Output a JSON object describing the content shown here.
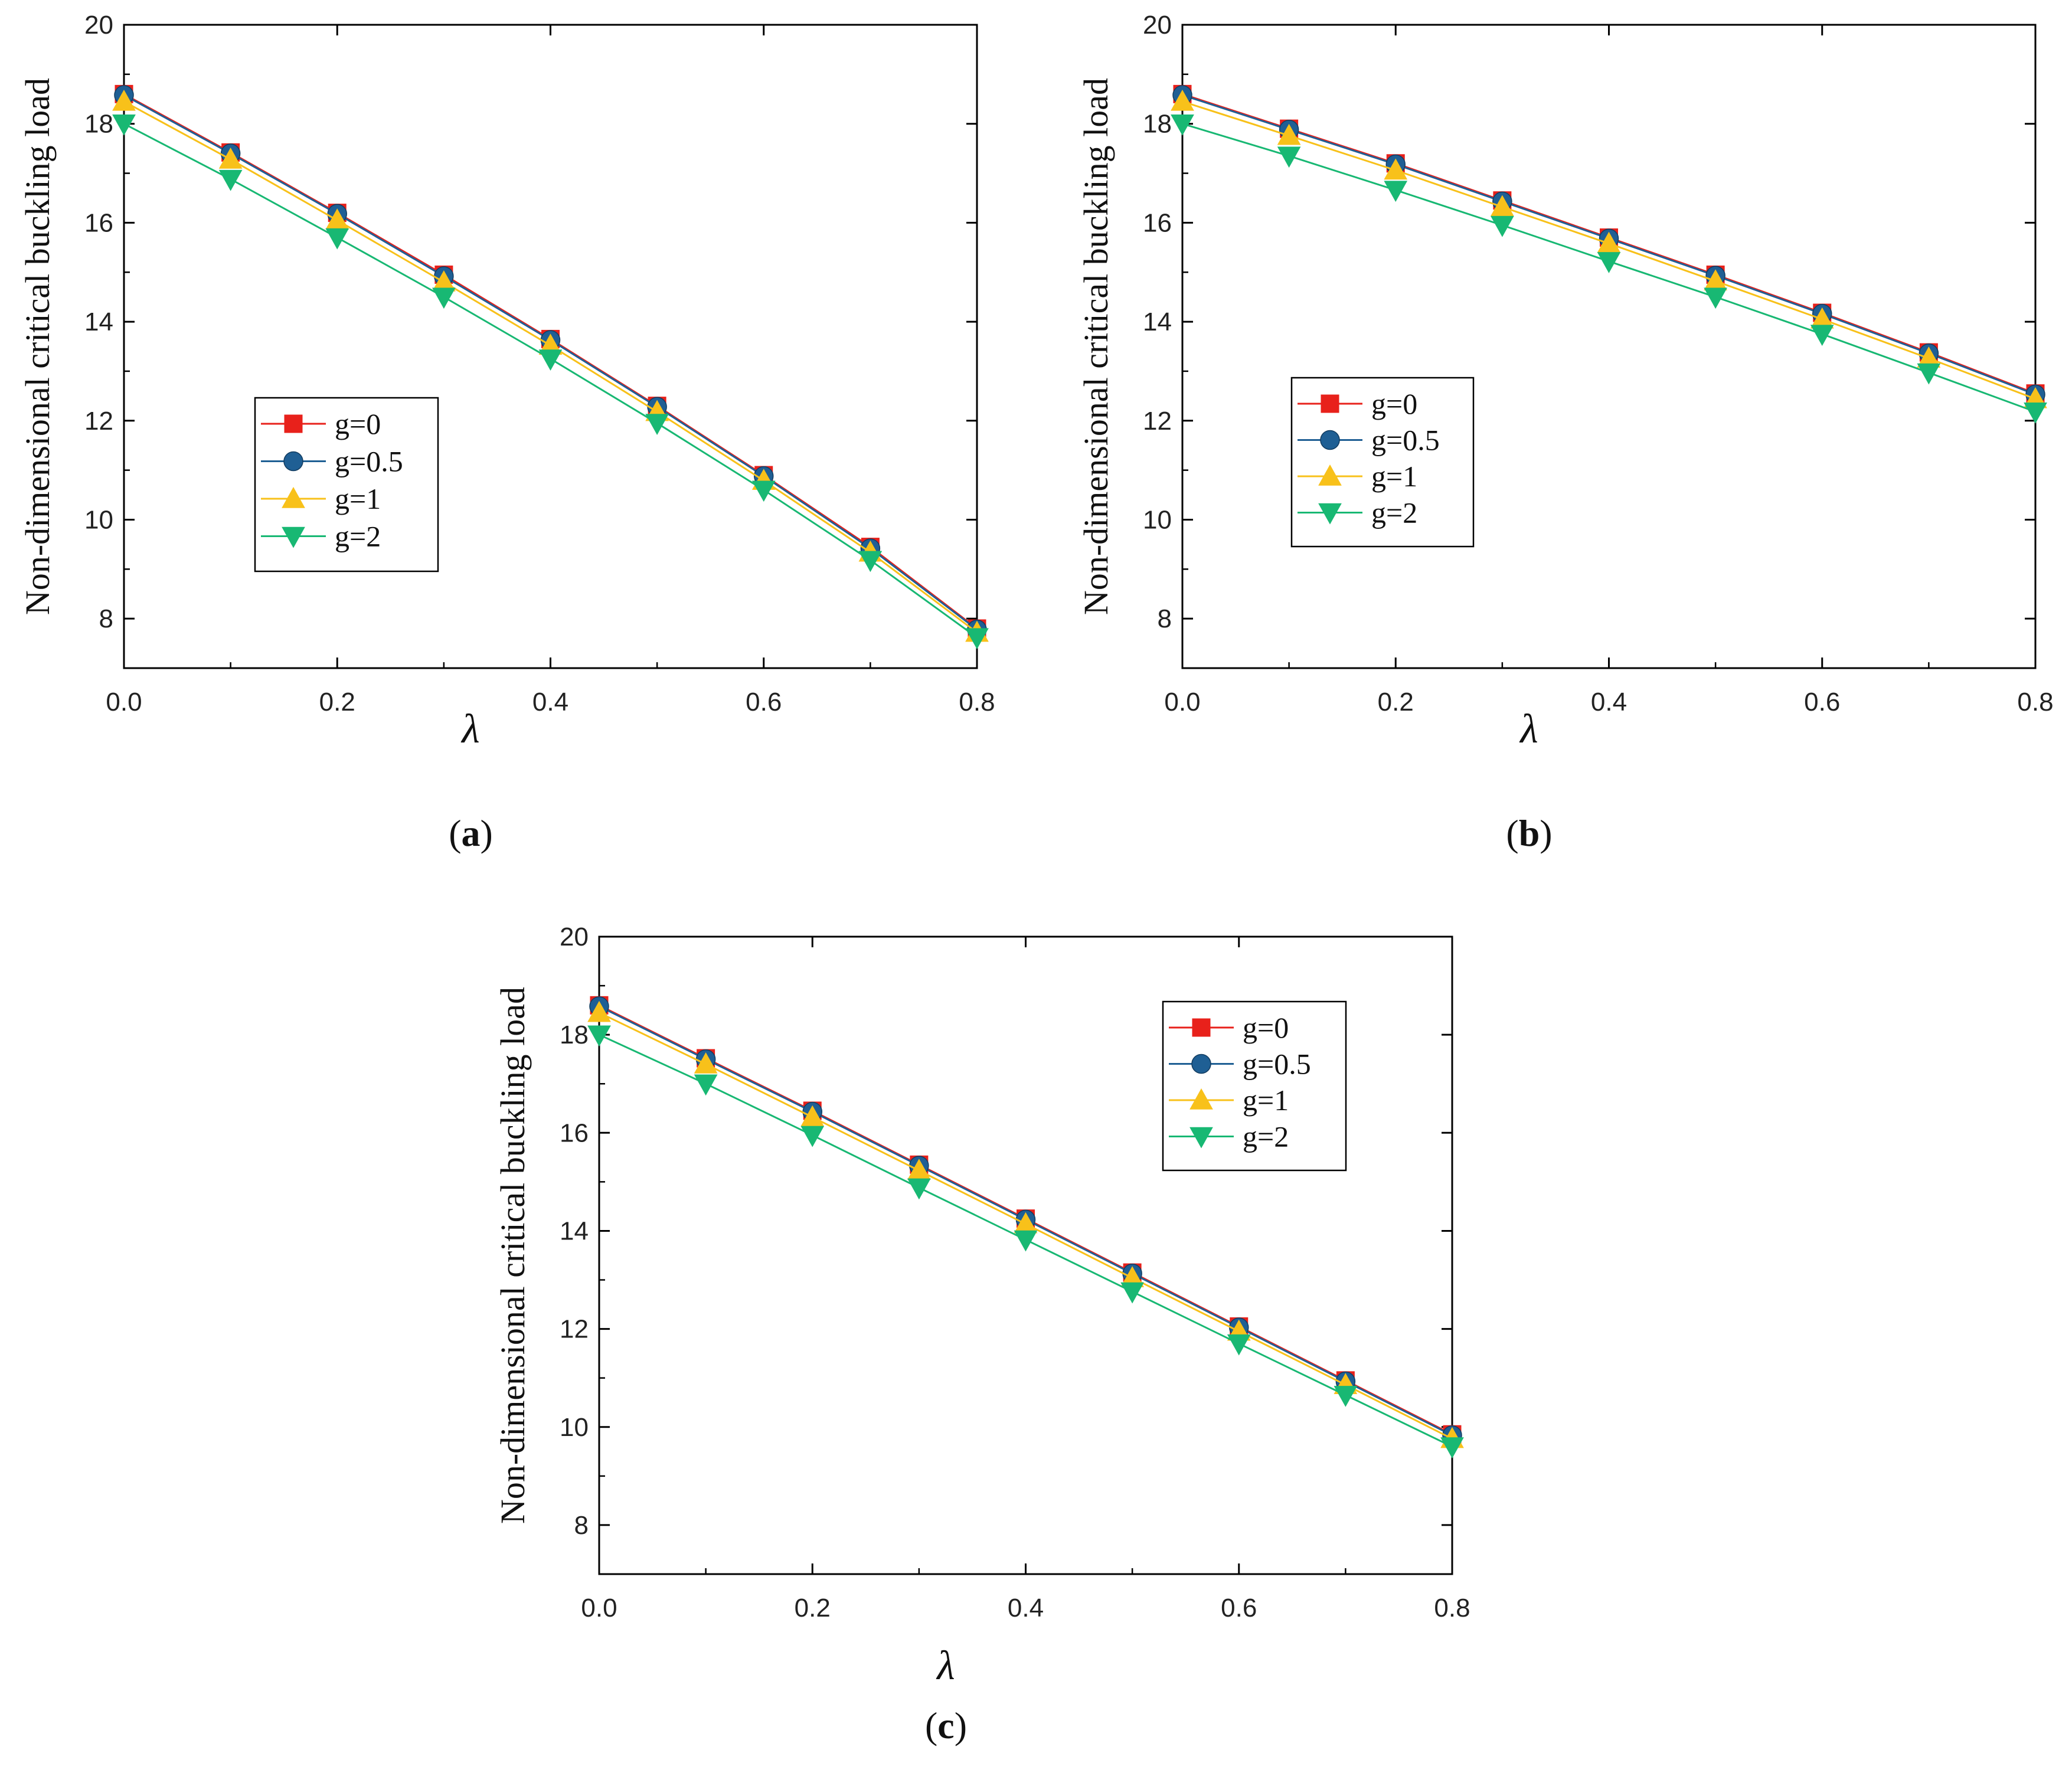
{
  "figure": {
    "colors": {
      "g0": "#e8211b",
      "g05": "#1f5f94",
      "g1": "#f8c11a",
      "g2": "#18b873",
      "axis": "#000000"
    }
  },
  "chart_data": [
    {
      "id": "a",
      "type": "line",
      "caption": "(a)",
      "caption_letter": "a",
      "xlabel": "λ",
      "ylabel": "Non-dimensional critical buckling load",
      "xlim": [
        0,
        0.8
      ],
      "ylim": [
        7,
        20
      ],
      "x_ticks": [
        "0.0",
        "0.2",
        "0.4",
        "0.6",
        "0.8"
      ],
      "y_ticks": [
        "8",
        "10",
        "12",
        "14",
        "16",
        "18",
        "20"
      ],
      "legend_position": "center-left",
      "x": [
        0,
        0.1,
        0.2,
        0.3,
        0.4,
        0.5,
        0.6,
        0.7,
        0.8
      ],
      "series": [
        {
          "name": "g=0",
          "marker": "square",
          "color_key": "g0",
          "values": [
            18.6,
            17.42,
            16.2,
            14.95,
            13.65,
            12.3,
            10.9,
            9.45,
            7.8
          ]
        },
        {
          "name": "g=0.5",
          "marker": "circle",
          "color_key": "g05",
          "values": [
            18.58,
            17.4,
            16.18,
            14.92,
            13.63,
            12.28,
            10.88,
            9.42,
            7.78
          ]
        },
        {
          "name": "g=1",
          "marker": "triangle-up",
          "color_key": "g1",
          "values": [
            18.45,
            17.28,
            16.05,
            14.8,
            13.52,
            12.18,
            10.79,
            9.34,
            7.72
          ]
        },
        {
          "name": "g=2",
          "marker": "triangle-down",
          "color_key": "g2",
          "values": [
            18.0,
            16.88,
            15.7,
            14.5,
            13.25,
            11.95,
            10.6,
            9.18,
            7.62
          ]
        }
      ]
    },
    {
      "id": "b",
      "type": "line",
      "caption": "(b)",
      "caption_letter": "b",
      "xlabel": "λ",
      "ylabel": "Non-dimensional critical buckling load",
      "xlim": [
        0,
        0.8
      ],
      "ylim": [
        7,
        20
      ],
      "x_ticks": [
        "0.0",
        "0.2",
        "0.4",
        "0.6",
        "0.8"
      ],
      "y_ticks": [
        "8",
        "10",
        "12",
        "14",
        "16",
        "18",
        "20"
      ],
      "legend_position": "center-left",
      "x": [
        0,
        0.1,
        0.2,
        0.3,
        0.4,
        0.5,
        0.6,
        0.7,
        0.8
      ],
      "series": [
        {
          "name": "g=0",
          "marker": "square",
          "color_key": "g0",
          "values": [
            18.6,
            17.9,
            17.2,
            16.45,
            15.7,
            14.95,
            14.18,
            13.38,
            12.55
          ]
        },
        {
          "name": "g=0.5",
          "marker": "circle",
          "color_key": "g05",
          "values": [
            18.58,
            17.88,
            17.18,
            16.43,
            15.68,
            14.93,
            14.16,
            13.36,
            12.53
          ]
        },
        {
          "name": "g=1",
          "marker": "triangle-up",
          "color_key": "g1",
          "values": [
            18.45,
            17.76,
            17.06,
            16.32,
            15.58,
            14.82,
            14.05,
            13.26,
            12.44
          ]
        },
        {
          "name": "g=2",
          "marker": "triangle-down",
          "color_key": "g2",
          "values": [
            18.0,
            17.35,
            16.66,
            15.95,
            15.22,
            14.5,
            13.75,
            12.97,
            12.18
          ]
        }
      ]
    },
    {
      "id": "c",
      "type": "line",
      "caption": "(c)",
      "caption_letter": "c",
      "xlabel": "λ",
      "ylabel": "Non-dimensional critical buckling load",
      "xlim": [
        0,
        0.8
      ],
      "ylim": [
        7,
        20
      ],
      "x_ticks": [
        "0.0",
        "0.2",
        "0.4",
        "0.6",
        "0.8"
      ],
      "y_ticks": [
        "8",
        "10",
        "12",
        "14",
        "16",
        "18",
        "20"
      ],
      "legend_position": "top-right",
      "x": [
        0,
        0.1,
        0.2,
        0.3,
        0.4,
        0.5,
        0.6,
        0.7,
        0.8
      ],
      "series": [
        {
          "name": "g=0",
          "marker": "square",
          "color_key": "g0",
          "values": [
            18.6,
            17.52,
            16.45,
            15.35,
            14.25,
            13.15,
            12.05,
            10.95,
            9.85
          ]
        },
        {
          "name": "g=0.5",
          "marker": "circle",
          "color_key": "g05",
          "values": [
            18.58,
            17.5,
            16.43,
            15.33,
            14.23,
            13.13,
            12.03,
            10.93,
            9.83
          ]
        },
        {
          "name": "g=1",
          "marker": "triangle-up",
          "color_key": "g1",
          "values": [
            18.45,
            17.4,
            16.32,
            15.23,
            14.14,
            13.04,
            11.95,
            10.86,
            9.76
          ]
        },
        {
          "name": "g=2",
          "marker": "triangle-down",
          "color_key": "g2",
          "values": [
            18.0,
            17.0,
            15.95,
            14.88,
            13.82,
            12.76,
            11.7,
            10.65,
            9.6
          ]
        }
      ]
    }
  ]
}
